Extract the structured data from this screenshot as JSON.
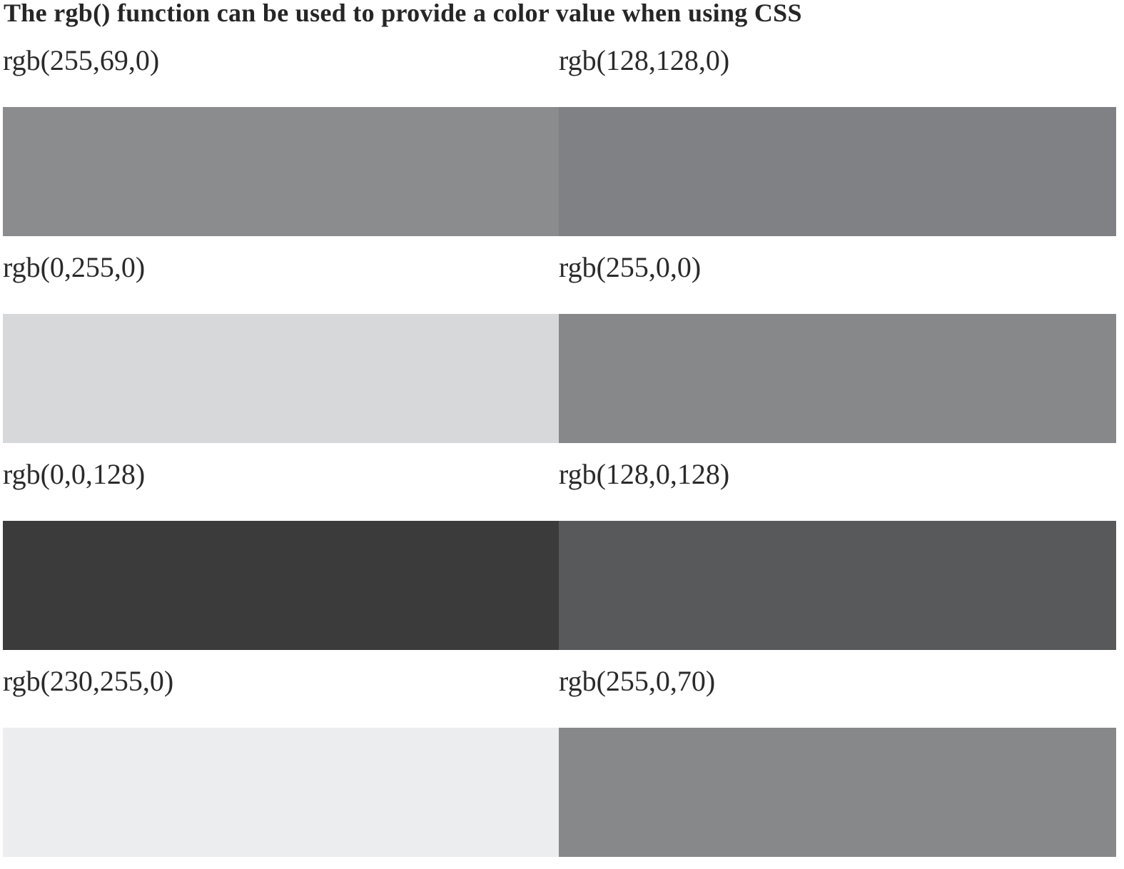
{
  "title": "The rgb() function can be used to provide a color value when using CSS",
  "swatches": [
    {
      "label": "rgb(255,69,0)",
      "color": "#8b8c8e"
    },
    {
      "label": "rgb(128,128,0)",
      "color": "#808185"
    },
    {
      "label": "rgb(0,255,0)",
      "color": "#d7d8da"
    },
    {
      "label": "rgb(255,0,0)",
      "color": "#87888a"
    },
    {
      "label": "rgb(0,0,128)",
      "color": "#3b3b3c"
    },
    {
      "label": "rgb(128,0,128)",
      "color": "#58595b"
    },
    {
      "label": "rgb(230,255,0)",
      "color": "#ecedef"
    },
    {
      "label": "rgb(255,0,70)",
      "color": "#87888a"
    }
  ]
}
